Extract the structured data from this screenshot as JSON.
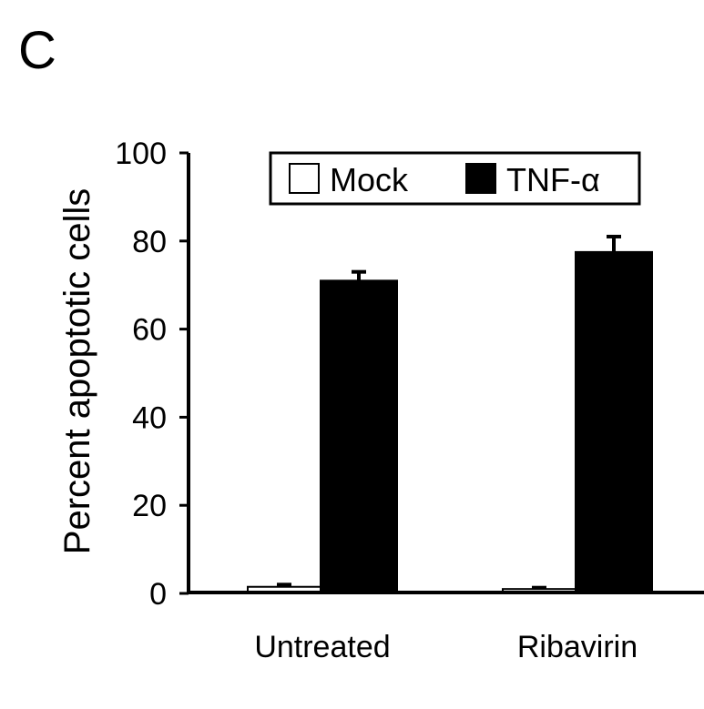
{
  "panel_label": "C",
  "chart_data": {
    "type": "bar",
    "ylabel": "Percent apoptotic cells",
    "xlabel": "",
    "ylim": [
      0,
      100
    ],
    "yticks": [
      0,
      20,
      40,
      60,
      80,
      100
    ],
    "categories": [
      "Untreated",
      "Ribavirin"
    ],
    "series": [
      {
        "name": "Mock",
        "values": [
          1.5,
          1.0
        ],
        "errors": [
          0.5,
          0.3
        ],
        "color": "#ffffff"
      },
      {
        "name": "TNF-α",
        "values": [
          71,
          77.5
        ],
        "errors": [
          2,
          3.5
        ],
        "color": "#000000"
      }
    ],
    "legend": {
      "position": "top",
      "entries": [
        "Mock",
        "TNF-α"
      ]
    },
    "grid": false
  }
}
